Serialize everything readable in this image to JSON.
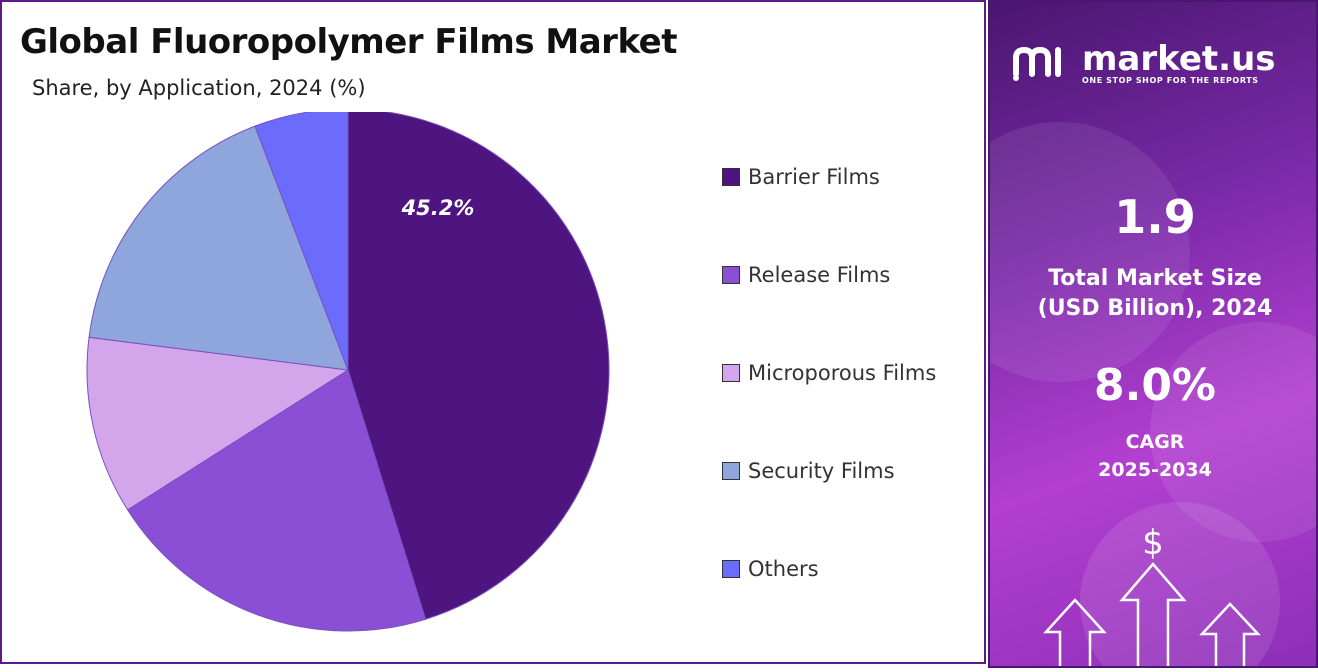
{
  "header": {
    "title": "Global Fluoropolymer Films Market",
    "subtitle": "Share, by Application, 2024 (%)"
  },
  "chart_data": {
    "type": "pie",
    "title": "Global Fluoropolymer Films Market",
    "subtitle": "Share, by Application, 2024 (%)",
    "categories": [
      "Barrier Films",
      "Release Films",
      "Microporous Films",
      "Security Films",
      "Others"
    ],
    "values": [
      45.2,
      20.8,
      11.0,
      17.2,
      5.8
    ],
    "colors": [
      "#4e1480",
      "#8b4fd6",
      "#d3a6ec",
      "#8ea6dc",
      "#6b6cfb"
    ],
    "data_labels": [
      "45.2%",
      "",
      "",
      "",
      ""
    ],
    "legend_position": "right"
  },
  "sidebar": {
    "brand_name": "market.us",
    "brand_tagline": "ONE STOP SHOP FOR THE REPORTS",
    "market_size_value": "1.9",
    "market_size_label_line1": "Total Market Size",
    "market_size_label_line2": "(USD Billion), 2024",
    "cagr_value": "8.0%",
    "cagr_label_line1": "CAGR",
    "cagr_label_line2": "2025-2034",
    "dollar_symbol": "$",
    "icon": "growth-arrows-icon"
  }
}
